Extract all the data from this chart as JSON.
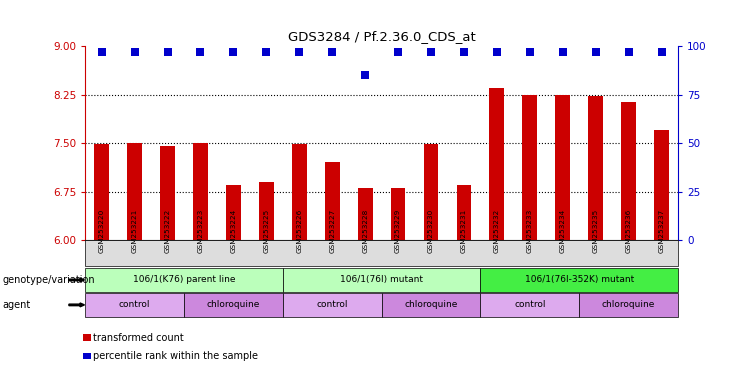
{
  "title": "GDS3284 / Pf.2.36.0_CDS_at",
  "samples": [
    "GSM253220",
    "GSM253221",
    "GSM253222",
    "GSM253223",
    "GSM253224",
    "GSM253225",
    "GSM253226",
    "GSM253227",
    "GSM253228",
    "GSM253229",
    "GSM253230",
    "GSM253231",
    "GSM253232",
    "GSM253233",
    "GSM253234",
    "GSM253235",
    "GSM253236",
    "GSM253237"
  ],
  "bar_values": [
    7.48,
    7.5,
    7.45,
    7.5,
    6.85,
    6.9,
    7.48,
    7.2,
    6.8,
    6.8,
    7.48,
    6.85,
    8.35,
    8.25,
    8.25,
    8.22,
    8.13,
    7.7
  ],
  "percentile_values": [
    97,
    97,
    97,
    97,
    97,
    97,
    97,
    97,
    85,
    97,
    97,
    97,
    97,
    97,
    97,
    97,
    97,
    97
  ],
  "bar_color": "#cc0000",
  "dot_color": "#0000cc",
  "ylim_left": [
    6.0,
    9.0
  ],
  "ylim_right": [
    0,
    100
  ],
  "yticks_left": [
    6.0,
    6.75,
    7.5,
    8.25,
    9.0
  ],
  "yticks_right": [
    0,
    25,
    50,
    75,
    100
  ],
  "hlines": [
    6.75,
    7.5,
    8.25
  ],
  "genotype_groups": [
    {
      "label": "106/1(K76) parent line",
      "start": 0,
      "end": 6,
      "color": "#bbffbb"
    },
    {
      "label": "106/1(76I) mutant",
      "start": 6,
      "end": 12,
      "color": "#bbffbb"
    },
    {
      "label": "106/1(76I-352K) mutant",
      "start": 12,
      "end": 18,
      "color": "#44ee44"
    }
  ],
  "agent_groups": [
    {
      "label": "control",
      "start": 0,
      "end": 3,
      "color": "#ddaaee"
    },
    {
      "label": "chloroquine",
      "start": 3,
      "end": 6,
      "color": "#cc88dd"
    },
    {
      "label": "control",
      "start": 6,
      "end": 9,
      "color": "#ddaaee"
    },
    {
      "label": "chloroquine",
      "start": 9,
      "end": 12,
      "color": "#cc88dd"
    },
    {
      "label": "control",
      "start": 12,
      "end": 15,
      "color": "#ddaaee"
    },
    {
      "label": "chloroquine",
      "start": 15,
      "end": 18,
      "color": "#cc88dd"
    }
  ],
  "legend_items": [
    {
      "label": "transformed count",
      "color": "#cc0000"
    },
    {
      "label": "percentile rank within the sample",
      "color": "#0000cc"
    }
  ],
  "genotype_label": "genotype/variation",
  "agent_label": "agent",
  "bar_width": 0.45,
  "dot_size": 28,
  "background_color": "#ffffff",
  "tick_label_bg": "#dddddd"
}
